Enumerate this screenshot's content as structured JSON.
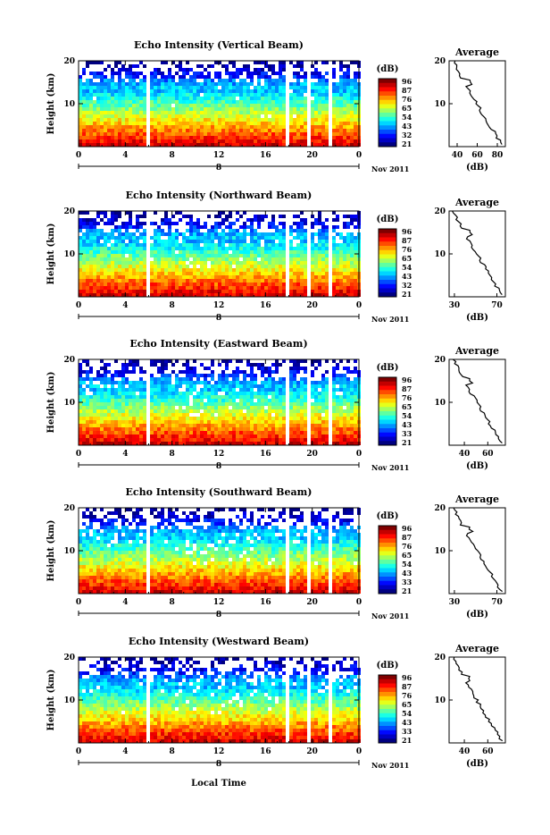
{
  "figure": {
    "xlabel": "Local Time",
    "height_label": "Height (km)",
    "date_label": "Nov 2011",
    "day_label": "8",
    "x_ticks": [
      "0",
      "4",
      "8",
      "12",
      "16",
      "20",
      "0"
    ],
    "y_ticks": [
      "20",
      "10"
    ],
    "colorbar_unit": "(dB)",
    "average_title": "Average",
    "average_xlabel": "(dB)"
  },
  "chart_data": [
    {
      "type": "heatmap",
      "title": "Echo Intensity (Vertical Beam)",
      "xlim": [
        0,
        24
      ],
      "ylim": [
        0,
        20
      ],
      "colorbar_ticks": [
        "96",
        "87",
        "76",
        "65",
        "54",
        "43",
        "32",
        "21"
      ],
      "average_profile": {
        "type": "line",
        "x_ticks": [
          "40",
          "60",
          "80"
        ],
        "xlim": [
          32,
          88
        ]
      }
    },
    {
      "type": "heatmap",
      "title": "Echo Intensity (Northward Beam)",
      "xlim": [
        0,
        24
      ],
      "ylim": [
        0,
        20
      ],
      "colorbar_ticks": [
        "96",
        "87",
        "76",
        "65",
        "54",
        "43",
        "32",
        "21"
      ],
      "average_profile": {
        "type": "line",
        "x_ticks": [
          "30",
          "70"
        ],
        "xlim": [
          25,
          78
        ]
      }
    },
    {
      "type": "heatmap",
      "title": "Echo Intensity (Eastward Beam)",
      "xlim": [
        0,
        24
      ],
      "ylim": [
        0,
        20
      ],
      "colorbar_ticks": [
        "96",
        "87",
        "76",
        "65",
        "54",
        "43",
        "33",
        "21"
      ],
      "average_profile": {
        "type": "line",
        "x_ticks": [
          "40",
          "60"
        ],
        "xlim": [
          27,
          75
        ]
      }
    },
    {
      "type": "heatmap",
      "title": "Echo Intensity (Southward Beam)",
      "xlim": [
        0,
        24
      ],
      "ylim": [
        0,
        20
      ],
      "colorbar_ticks": [
        "96",
        "87",
        "76",
        "65",
        "54",
        "43",
        "33",
        "21"
      ],
      "average_profile": {
        "type": "line",
        "x_ticks": [
          "30",
          "70"
        ],
        "xlim": [
          25,
          78
        ]
      }
    },
    {
      "type": "heatmap",
      "title": "Echo Intensity (Westward Beam)",
      "xlim": [
        0,
        24
      ],
      "ylim": [
        0,
        20
      ],
      "colorbar_ticks": [
        "96",
        "87",
        "76",
        "65",
        "54",
        "43",
        "33",
        "21"
      ],
      "average_profile": {
        "type": "line",
        "x_ticks": [
          "40",
          "60"
        ],
        "xlim": [
          27,
          75
        ]
      }
    }
  ]
}
